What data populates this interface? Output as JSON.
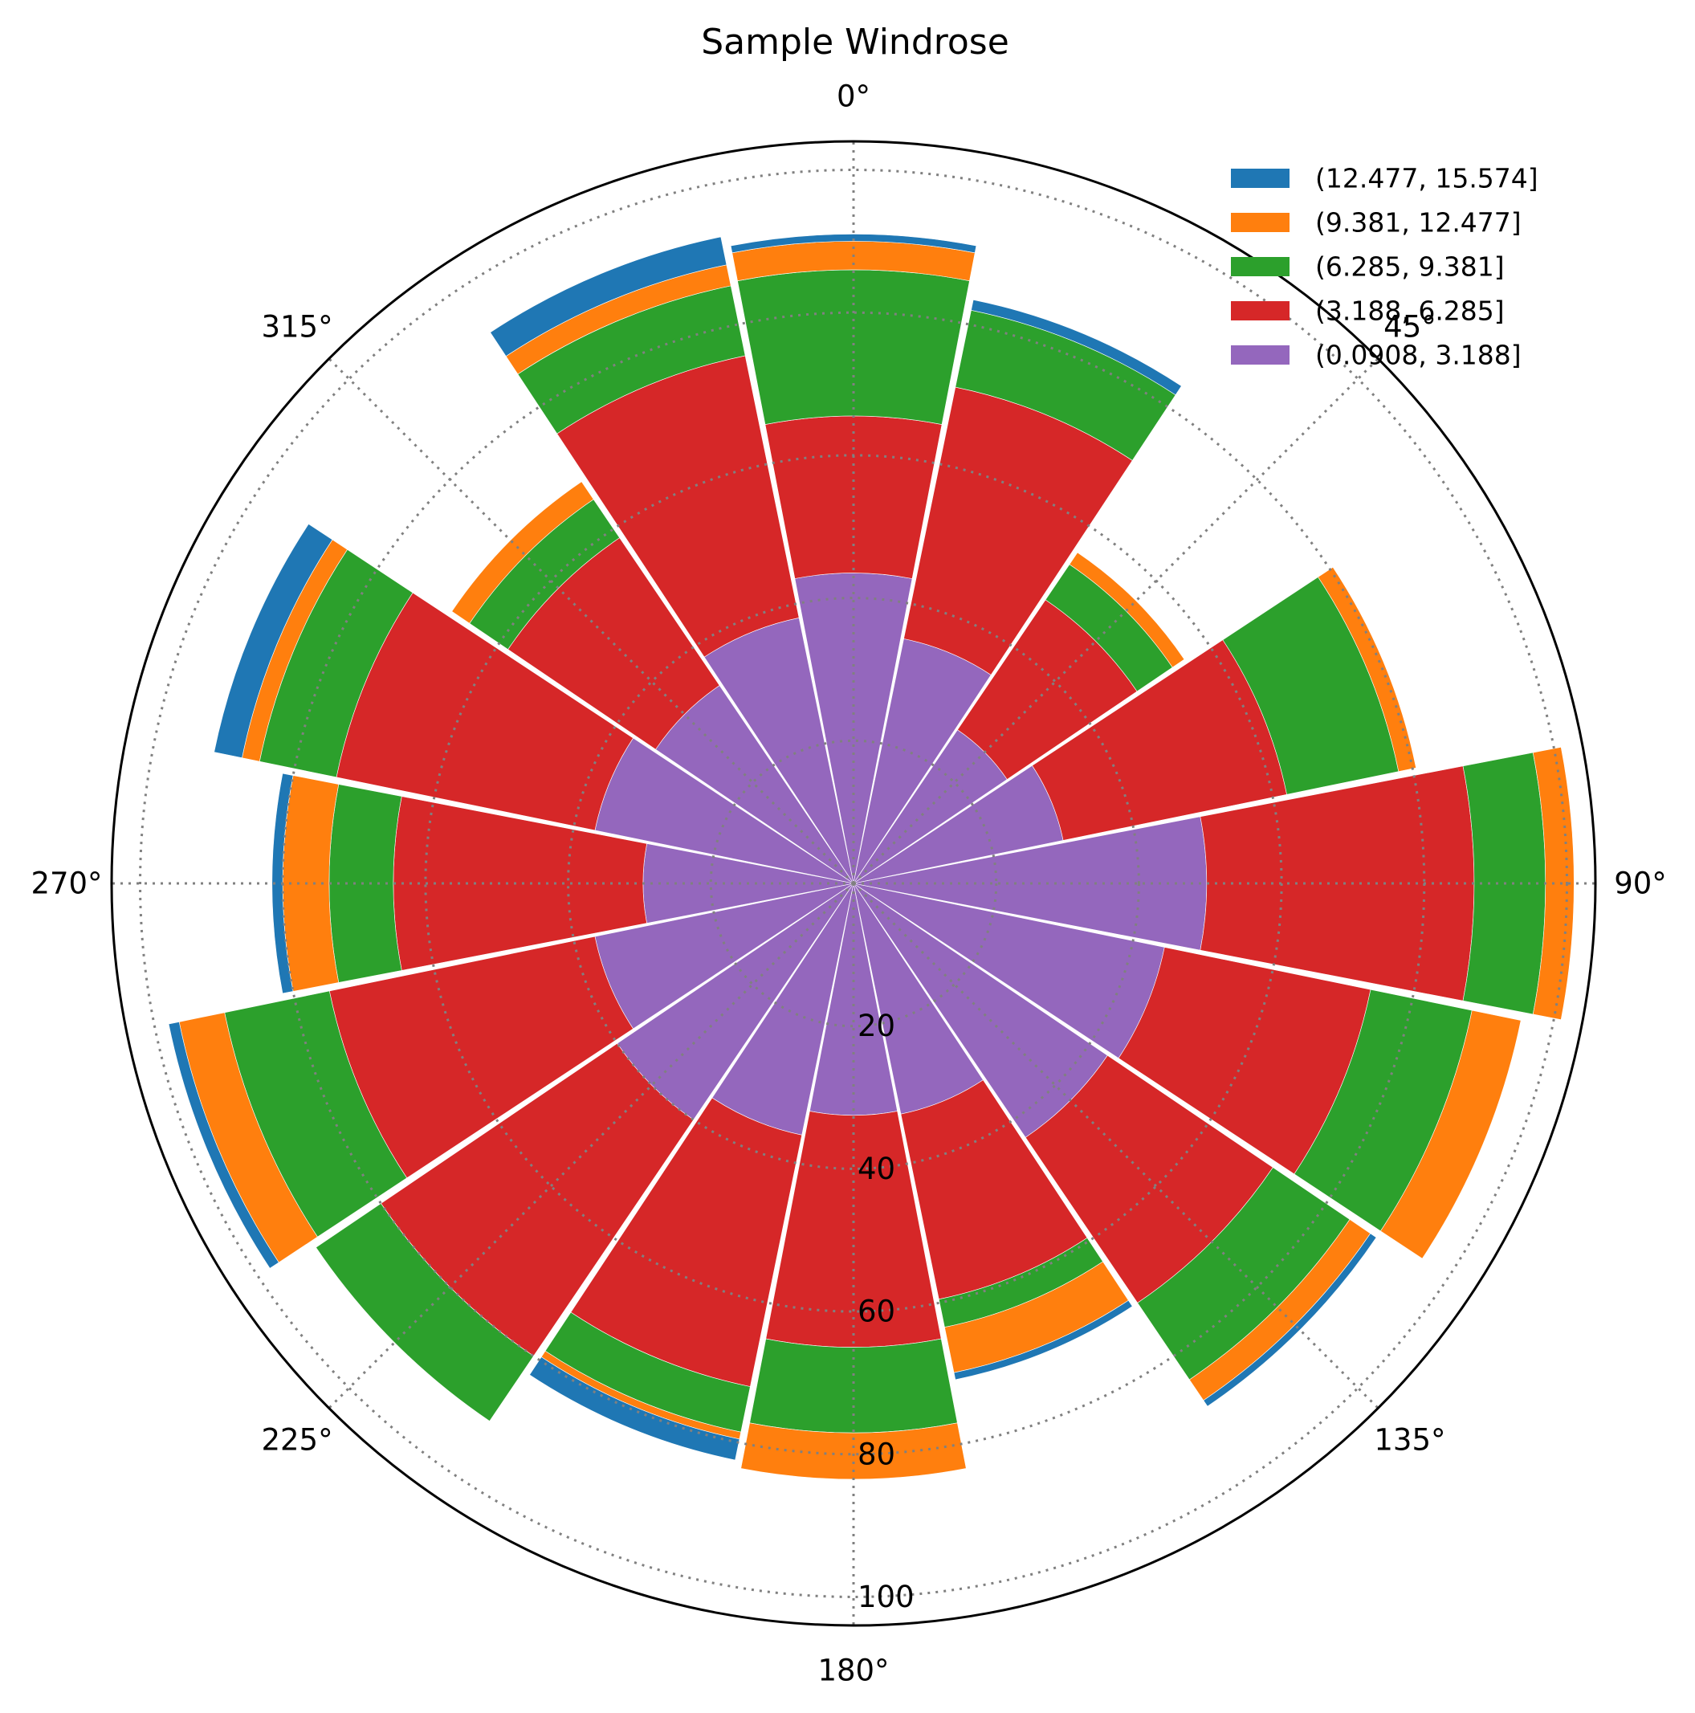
{
  "chart_data": {
    "type": "windrose",
    "title": "Sample Windrose",
    "directions_deg": [
      0,
      22.5,
      45,
      67.5,
      90,
      112.5,
      135,
      157.5,
      180,
      202.5,
      225,
      247.5,
      270,
      292.5,
      315,
      337.5
    ],
    "angle_tick_labels": [
      "0°",
      "45°",
      "90°",
      "135°",
      "180°",
      "225°",
      "270°",
      "315°"
    ],
    "angle_tick_values_deg": [
      0,
      45,
      90,
      135,
      180,
      225,
      270,
      315
    ],
    "radial_tick_labels": [
      "20",
      "40",
      "60",
      "80",
      "100"
    ],
    "radial_tick_values": [
      20,
      40,
      60,
      80,
      100
    ],
    "rlim": [
      0,
      104
    ],
    "theta_zero": "north",
    "theta_direction": "clockwise",
    "grid": true,
    "legend_location": "top-right",
    "series": [
      {
        "name": "(0.0908, 3.188]",
        "color": "#9467bd",
        "values": [
          43.5,
          35.0,
          26.0,
          30.0,
          49.5,
          44.5,
          43.0,
          33.0,
          32.5,
          36.0,
          40.0,
          37.0,
          29.5,
          37.0,
          33.5,
          38.0
        ]
      },
      {
        "name": "(3.188, 6.285]",
        "color": "#d62728",
        "values": [
          22.0,
          36.0,
          22.0,
          32.0,
          37.5,
          29.5,
          28.0,
          26.5,
          32.5,
          36.0,
          40.0,
          38.0,
          35.0,
          37.0,
          25.0,
          37.5
        ]
      },
      {
        "name": "(6.285, 9.381]",
        "color": "#2ca02c",
        "values": [
          20.5,
          11.0,
          6.0,
          16.0,
          10.0,
          14.5,
          13.0,
          4.0,
          12.0,
          6.5,
          11.0,
          15.0,
          9.0,
          11.0,
          6.5,
          10.0
        ]
      },
      {
        "name": "(9.381, 12.477]",
        "color": "#ff7f0e",
        "values": [
          4.0,
          0.0,
          2.0,
          2.5,
          4.0,
          7.0,
          3.5,
          6.5,
          6.5,
          1.0,
          0.0,
          6.5,
          6.5,
          2.5,
          3.0,
          3.0
        ]
      },
      {
        "name": "(12.477, 15.574]",
        "color": "#1f77b4",
        "values": [
          1.0,
          1.5,
          0.0,
          0.0,
          0.0,
          0.0,
          1.0,
          1.0,
          0.0,
          3.0,
          0.0,
          1.5,
          1.5,
          4.0,
          0.0,
          4.0
        ]
      }
    ]
  }
}
